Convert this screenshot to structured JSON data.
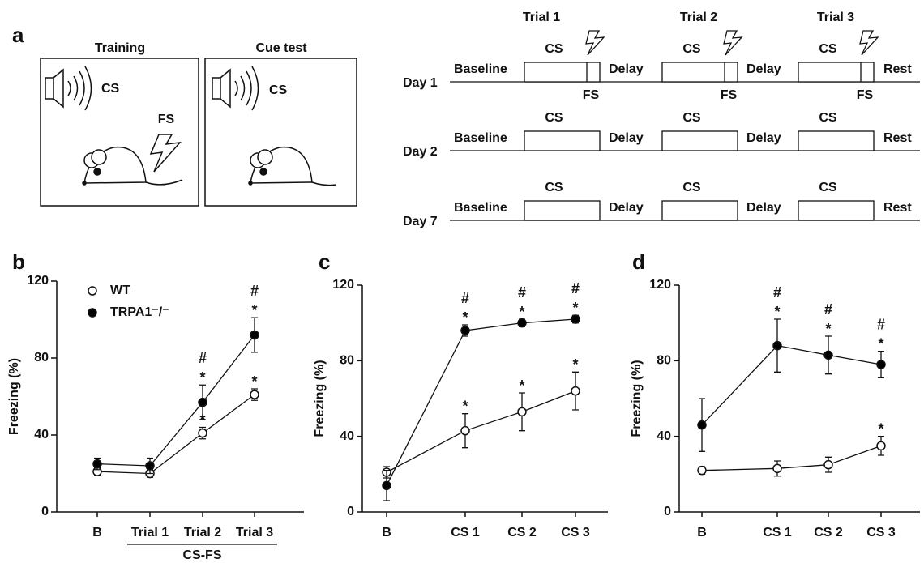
{
  "diagram": {
    "panel": "a",
    "training": {
      "title": "Training",
      "cs": "CS",
      "fs": "FS"
    },
    "cue_test": {
      "title": "Cue test",
      "cs": "CS"
    },
    "timeline": {
      "trials": [
        "Trial 1",
        "Trial 2",
        "Trial 3"
      ],
      "days": [
        {
          "label": "Day 1",
          "baseline": "Baseline",
          "cs": [
            "CS",
            "CS",
            "CS"
          ],
          "delays": [
            "Delay",
            "Delay"
          ],
          "rest": "Rest",
          "fs": [
            "FS",
            "FS",
            "FS"
          ]
        },
        {
          "label": "Day 2",
          "baseline": "Baseline",
          "cs": [
            "CS",
            "CS",
            "CS"
          ],
          "delays": [
            "Delay",
            "Delay"
          ],
          "rest": "Rest"
        },
        {
          "label": "Day 7",
          "baseline": "Baseline",
          "cs": [
            "CS",
            "CS",
            "CS"
          ],
          "delays": [
            "Delay",
            "Delay"
          ],
          "rest": "Rest"
        }
      ]
    }
  },
  "chart_data": [
    {
      "type": "line",
      "panel": "b",
      "y_label": "Freezing (%)",
      "categories": [
        "B",
        "Trial 1",
        "Trial 2",
        "Trial 3"
      ],
      "x_group_label": "CS-FS",
      "ylim": [
        0,
        120
      ],
      "yticks": [
        0,
        40,
        80,
        120
      ],
      "legend": "top-left",
      "series": [
        {
          "name": "WT",
          "color": "#ffffff",
          "values": [
            21,
            20,
            41,
            61
          ],
          "errors": [
            2,
            2,
            3,
            3
          ],
          "annotations": [
            null,
            null,
            [
              "*"
            ],
            [
              "*"
            ]
          ]
        },
        {
          "name": "TRPA1⁻/⁻",
          "color": "#000000",
          "values": [
            25,
            24,
            57,
            92
          ],
          "errors": [
            3,
            4,
            9,
            9
          ],
          "annotations": [
            null,
            null,
            [
              "#",
              "*"
            ],
            [
              "#",
              "*"
            ]
          ]
        }
      ]
    },
    {
      "type": "line",
      "panel": "c",
      "y_label": "Freezing (%)",
      "categories": [
        "B",
        "CS 1",
        "CS 2",
        "CS 3"
      ],
      "ylim": [
        0,
        120
      ],
      "yticks": [
        0,
        40,
        80,
        120
      ],
      "series": [
        {
          "name": "WT",
          "color": "#ffffff",
          "values": [
            21,
            43,
            53,
            64
          ],
          "errors": [
            3,
            9,
            10,
            10
          ],
          "annotations": [
            null,
            [
              "*"
            ],
            [
              "*"
            ],
            [
              "*"
            ]
          ]
        },
        {
          "name": "TRPA1⁻/⁻",
          "color": "#000000",
          "values": [
            14,
            96,
            100,
            102
          ],
          "errors": [
            8,
            3,
            2,
            2
          ],
          "annotations": [
            null,
            [
              "#",
              "*"
            ],
            [
              "#",
              "*"
            ],
            [
              "#",
              "*"
            ]
          ]
        }
      ]
    },
    {
      "type": "line",
      "panel": "d",
      "y_label": "Freezing (%)",
      "categories": [
        "B",
        "CS 1",
        "CS 2",
        "CS 3"
      ],
      "ylim": [
        0,
        120
      ],
      "yticks": [
        0,
        40,
        80,
        120
      ],
      "series": [
        {
          "name": "WT",
          "color": "#ffffff",
          "values": [
            22,
            23,
            25,
            35
          ],
          "errors": [
            2,
            4,
            4,
            5
          ],
          "annotations": [
            null,
            null,
            null,
            [
              "*"
            ]
          ]
        },
        {
          "name": "TRPA1⁻/⁻",
          "color": "#000000",
          "values": [
            46,
            88,
            83,
            78
          ],
          "errors": [
            14,
            14,
            10,
            7
          ],
          "annotations": [
            null,
            [
              "#",
              "*"
            ],
            [
              "#",
              "*"
            ],
            [
              "#",
              "*"
            ]
          ]
        }
      ]
    }
  ]
}
